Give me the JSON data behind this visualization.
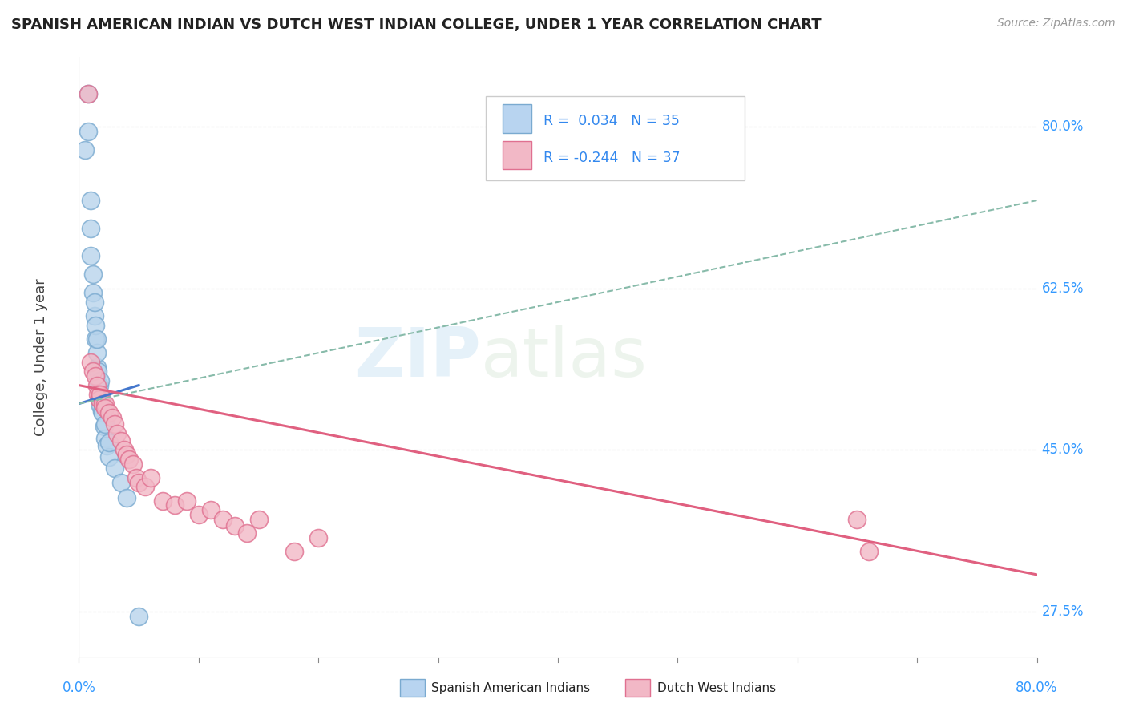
{
  "title": "SPANISH AMERICAN INDIAN VS DUTCH WEST INDIAN COLLEGE, UNDER 1 YEAR CORRELATION CHART",
  "source": "Source: ZipAtlas.com",
  "ylabel": "College, Under 1 year",
  "xlim": [
    0.0,
    0.8
  ],
  "ylim": [
    0.225,
    0.875
  ],
  "xticklabels": [
    "0.0%",
    "80.0%"
  ],
  "ytick_positions": [
    0.275,
    0.45,
    0.625,
    0.8
  ],
  "ytick_labels": [
    "27.5%",
    "45.0%",
    "62.5%",
    "80.0%"
  ],
  "grid_color": "#c8c8c8",
  "background_color": "#ffffff",
  "watermark_zip": "ZIP",
  "watermark_atlas": "atlas",
  "blue_scatter_x": [
    0.005,
    0.008,
    0.008,
    0.01,
    0.01,
    0.01,
    0.012,
    0.012,
    0.013,
    0.013,
    0.014,
    0.014,
    0.015,
    0.015,
    0.015,
    0.016,
    0.016,
    0.017,
    0.017,
    0.018,
    0.018,
    0.018,
    0.019,
    0.019,
    0.02,
    0.021,
    0.022,
    0.022,
    0.023,
    0.025,
    0.025,
    0.03,
    0.035,
    0.04,
    0.05
  ],
  "blue_scatter_y": [
    0.775,
    0.795,
    0.835,
    0.66,
    0.69,
    0.72,
    0.62,
    0.64,
    0.595,
    0.61,
    0.57,
    0.585,
    0.54,
    0.555,
    0.57,
    0.52,
    0.535,
    0.505,
    0.52,
    0.498,
    0.51,
    0.525,
    0.492,
    0.505,
    0.49,
    0.475,
    0.462,
    0.478,
    0.455,
    0.442,
    0.458,
    0.43,
    0.415,
    0.398,
    0.27
  ],
  "pink_scatter_x": [
    0.008,
    0.01,
    0.012,
    0.014,
    0.015,
    0.016,
    0.017,
    0.018,
    0.02,
    0.022,
    0.022,
    0.025,
    0.028,
    0.03,
    0.032,
    0.035,
    0.038,
    0.04,
    0.042,
    0.045,
    0.048,
    0.05,
    0.055,
    0.06,
    0.07,
    0.08,
    0.09,
    0.1,
    0.11,
    0.12,
    0.13,
    0.14,
    0.15,
    0.18,
    0.2,
    0.65,
    0.66
  ],
  "pink_scatter_y": [
    0.835,
    0.545,
    0.535,
    0.53,
    0.52,
    0.51,
    0.505,
    0.51,
    0.5,
    0.5,
    0.495,
    0.49,
    0.485,
    0.478,
    0.468,
    0.46,
    0.45,
    0.445,
    0.44,
    0.435,
    0.42,
    0.415,
    0.41,
    0.42,
    0.395,
    0.39,
    0.395,
    0.38,
    0.385,
    0.375,
    0.368,
    0.36,
    0.375,
    0.34,
    0.355,
    0.375,
    0.34
  ],
  "blue_line_x": [
    0.0,
    0.05
  ],
  "blue_line_y": [
    0.5,
    0.52
  ],
  "pink_line_x": [
    0.0,
    0.8
  ],
  "pink_line_y": [
    0.52,
    0.315
  ],
  "dashed_line_x": [
    0.0,
    0.8
  ],
  "dashed_line_y": [
    0.5,
    0.72
  ],
  "blue_color": "#b8d4ec",
  "blue_edge_color": "#7aaad0",
  "pink_color": "#f2b8c6",
  "pink_edge_color": "#e07090",
  "blue_line_color": "#4477cc",
  "pink_line_color": "#e06080",
  "dashed_line_color": "#88bbaa",
  "legend_blue_color": "#b8d4f0",
  "legend_pink_color": "#f2b8c6",
  "title_color": "#222222",
  "axis_label_color": "#444444",
  "tick_label_color": "#3399ff",
  "legend_text_color": "#3388ee",
  "source_color": "#999999",
  "bottom_legend_text_color": "#222222"
}
